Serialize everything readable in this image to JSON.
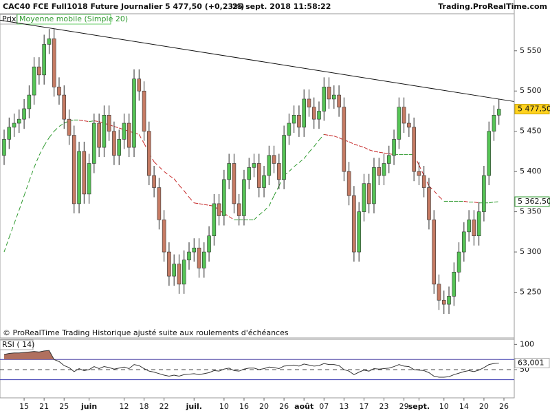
{
  "header": {
    "instrument": "CAC40 FCE Full1018 Future",
    "period": "Journalier",
    "quote": "5 477,50 (+0,23%)",
    "timestamp": "25 sept. 2018 11:58:22",
    "source": "Trading.ProRealTime.com",
    "note": "© ProRealTime Trading  Historique ajusté suite aux roulements d'échéances"
  },
  "chart_data": [
    {
      "type": "candlestick",
      "name": "Prix",
      "categories": [
        null,
        null,
        null,
        null,
        "15",
        null,
        null,
        null,
        "21",
        null,
        null,
        null,
        "25",
        null,
        null,
        null,
        null,
        "juin",
        null,
        null,
        null,
        null,
        null,
        null,
        "12",
        null,
        null,
        null,
        "18",
        null,
        null,
        null,
        "22",
        null,
        null,
        null,
        null,
        null,
        "juil.",
        null,
        null,
        null,
        null,
        null,
        "10",
        null,
        null,
        null,
        "16",
        null,
        null,
        null,
        "20",
        null,
        null,
        null,
        "26",
        null,
        null,
        null,
        "août",
        null,
        null,
        null,
        "07",
        null,
        null,
        null,
        "13",
        null,
        null,
        null,
        "17",
        null,
        null,
        null,
        "23",
        null,
        null,
        null,
        "29",
        null,
        null,
        "sept.",
        null,
        null,
        null,
        null,
        "10",
        null,
        null,
        null,
        "14",
        null,
        null,
        null,
        "20",
        null,
        null,
        null,
        "26"
      ],
      "open": [
        5420,
        5440,
        5455,
        5460,
        5465,
        5478,
        5495,
        5530,
        5520,
        5558,
        5565,
        5505,
        5495,
        5465,
        5445,
        5360,
        5425,
        5372,
        5410,
        5460,
        5430,
        5470,
        5450,
        5420,
        5440,
        5460,
        5430,
        5515,
        5500,
        5450,
        5395,
        5380,
        5340,
        5300,
        5270,
        5285,
        5260,
        5290,
        5300,
        5305,
        5280,
        5300,
        5320,
        5360,
        5345,
        5390,
        5410,
        5360,
        5345,
        5390,
        5405,
        5410,
        5380,
        5395,
        5420,
        5410,
        5390,
        5445,
        5460,
        5470,
        5455,
        5490,
        5480,
        5465,
        5475,
        5505,
        5490,
        5495,
        5480,
        5400,
        5370,
        5300,
        5350,
        5385,
        5360,
        5405,
        5395,
        5410,
        5420,
        5440,
        5480,
        5460,
        5455,
        5400,
        5395,
        5380,
        5340,
        5260,
        5240,
        5235,
        5245,
        5275,
        5300,
        5325,
        5340,
        5320,
        5350,
        5395,
        5450,
        5470,
        null
      ],
      "high": [
        5452,
        5467,
        5472,
        5477,
        5490,
        5507,
        5542,
        5542,
        5570,
        5577,
        5577,
        5517,
        5507,
        5477,
        5457,
        5437,
        5437,
        5422,
        5472,
        5472,
        5482,
        5482,
        5462,
        5452,
        5472,
        5472,
        5527,
        5527,
        5512,
        5462,
        5407,
        5392,
        5352,
        5312,
        5297,
        5297,
        5302,
        5312,
        5317,
        5317,
        5312,
        5332,
        5372,
        5372,
        5402,
        5422,
        5422,
        5372,
        5402,
        5417,
        5422,
        5422,
        5407,
        5432,
        5432,
        5422,
        5457,
        5472,
        5482,
        5482,
        5502,
        5502,
        5492,
        5487,
        5517,
        5517,
        5507,
        5507,
        5492,
        5412,
        5382,
        5362,
        5397,
        5397,
        5417,
        5417,
        5422,
        5432,
        5452,
        5492,
        5492,
        5472,
        5467,
        5412,
        5407,
        5392,
        5352,
        5272,
        5252,
        5257,
        5287,
        5312,
        5337,
        5352,
        5352,
        5362,
        5407,
        5462,
        5482,
        5490,
        null
      ],
      "low": [
        5408,
        5428,
        5443,
        5448,
        5453,
        5466,
        5483,
        5508,
        5508,
        5546,
        5493,
        5483,
        5453,
        5433,
        5348,
        5348,
        5360,
        5360,
        5398,
        5418,
        5418,
        5438,
        5408,
        5408,
        5428,
        5418,
        5418,
        5488,
        5438,
        5383,
        5368,
        5328,
        5288,
        5258,
        5258,
        5248,
        5248,
        5278,
        5288,
        5268,
        5268,
        5288,
        5308,
        5333,
        5333,
        5378,
        5348,
        5333,
        5333,
        5378,
        5393,
        5368,
        5368,
        5383,
        5398,
        5378,
        5378,
        5433,
        5448,
        5443,
        5443,
        5468,
        5453,
        5453,
        5463,
        5478,
        5478,
        5468,
        5388,
        5358,
        5288,
        5288,
        5338,
        5348,
        5348,
        5383,
        5383,
        5398,
        5408,
        5428,
        5448,
        5443,
        5388,
        5383,
        5368,
        5328,
        5248,
        5228,
        5223,
        5223,
        5233,
        5263,
        5288,
        5313,
        5308,
        5308,
        5338,
        5383,
        5438,
        5458,
        null
      ],
      "close": [
        5440,
        5455,
        5460,
        5465,
        5478,
        5495,
        5530,
        5520,
        5558,
        5565,
        5505,
        5495,
        5465,
        5445,
        5360,
        5425,
        5372,
        5410,
        5460,
        5430,
        5470,
        5450,
        5420,
        5440,
        5460,
        5430,
        5515,
        5500,
        5450,
        5395,
        5380,
        5340,
        5300,
        5270,
        5285,
        5260,
        5290,
        5300,
        5305,
        5280,
        5300,
        5320,
        5360,
        5345,
        5390,
        5410,
        5360,
        5345,
        5390,
        5405,
        5410,
        5380,
        5395,
        5420,
        5410,
        5390,
        5445,
        5460,
        5470,
        5455,
        5490,
        5480,
        5465,
        5475,
        5505,
        5490,
        5495,
        5480,
        5400,
        5370,
        5300,
        5350,
        5385,
        5360,
        5405,
        5395,
        5410,
        5420,
        5440,
        5480,
        5460,
        5455,
        5400,
        5395,
        5380,
        5340,
        5260,
        5240,
        5235,
        5245,
        5275,
        5300,
        5325,
        5340,
        5320,
        5350,
        5395,
        5450,
        5470,
        5477.5,
        null
      ],
      "up_color": "#55c455",
      "down_color": "#c57a63",
      "last_label": "5 477,50",
      "ylim": [
        5194,
        5596
      ],
      "yticks": [
        {
          "value": 5250,
          "label": "5 250"
        },
        {
          "value": 5300,
          "label": "5 300"
        },
        {
          "value": 5350,
          "label": "5 350"
        },
        {
          "value": 5400,
          "label": "5 400"
        },
        {
          "value": 5450,
          "label": "5 450"
        },
        {
          "value": 5500,
          "label": "5 500"
        },
        {
          "value": 5550,
          "label": "5 550"
        }
      ],
      "overlay": {
        "type": "line",
        "name": "Moyenne mobile (Simple 20)",
        "up_color": "#2f9a2f",
        "down_color": "#c62828",
        "last_label": "5 362,50",
        "values": [
          5300,
          5318,
          5335,
          5352,
          5370,
          5388,
          5405,
          5420,
          5432,
          5442,
          5450,
          5456,
          5460,
          5463,
          5464,
          5464,
          5463,
          5462,
          5463,
          5462,
          5460,
          5458,
          5456,
          5454,
          5452,
          5450,
          5448,
          5446,
          5435,
          5423,
          5412,
          5406,
          5400,
          5395,
          5391,
          5383,
          5376,
          5368,
          5361,
          5360,
          5359,
          5358,
          5357,
          5352,
          5348,
          5344,
          5340,
          5340,
          5340,
          5340,
          5340,
          5346,
          5351,
          5357,
          5370,
          5382,
          5395,
          5400,
          5406,
          5411,
          5416,
          5424,
          5431,
          5439,
          5446,
          5445,
          5444,
          5442,
          5439,
          5437,
          5434,
          5432,
          5430,
          5427,
          5425,
          5424,
          5423,
          5422,
          5421,
          5421,
          5421,
          5421,
          5421,
          5408,
          5395,
          5382,
          5376,
          5369,
          5363,
          5363,
          5363,
          5363,
          5363,
          5362,
          5362,
          5361,
          5361,
          5361,
          5362,
          5362.5,
          null
        ]
      },
      "trendline": {
        "x": [
          -0.8,
          102
        ],
        "y": [
          5588,
          5487
        ],
        "color": "#111111"
      }
    },
    {
      "type": "line",
      "name": "RSI ( 14)",
      "color": "#333333",
      "fill_color": "#b0705f",
      "level_color": "#3a3ab0",
      "values": [
        80,
        82,
        83,
        83,
        84,
        85,
        86,
        85,
        87,
        88,
        70,
        66,
        58,
        54,
        46,
        52,
        48,
        50,
        56,
        52,
        56,
        54,
        51,
        53,
        55,
        52,
        60,
        58,
        52,
        47,
        45,
        42,
        39,
        37,
        39,
        37,
        40,
        41,
        42,
        40,
        42,
        44,
        48,
        47,
        51,
        53,
        48,
        47,
        51,
        53,
        53,
        50,
        52,
        55,
        54,
        52,
        57,
        58,
        59,
        57,
        61,
        59,
        57,
        58,
        62,
        60,
        60,
        58,
        50,
        47,
        40,
        45,
        49,
        47,
        52,
        51,
        52,
        53,
        56,
        60,
        57,
        56,
        50,
        49,
        48,
        44,
        37,
        35,
        35,
        36,
        40,
        43,
        46,
        48,
        46,
        49,
        54,
        60,
        62,
        63.001,
        null
      ],
      "last_label": "63,001",
      "ylim": [
        -6,
        110
      ],
      "yticks": [
        50,
        100
      ],
      "levels": [
        30,
        70
      ],
      "midline": 50
    }
  ]
}
